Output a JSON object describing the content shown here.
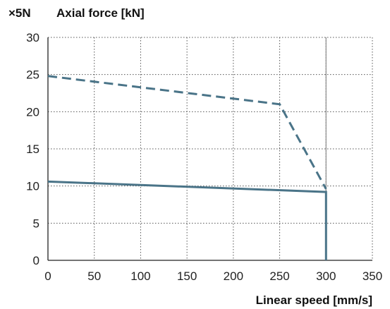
{
  "chart_data": {
    "type": "line",
    "unit_prefix": "×5N",
    "ylabel": "Axial force [kN]",
    "xlabel": "Linear speed [mm/s]",
    "xlim": [
      0,
      350
    ],
    "ylim": [
      0,
      30
    ],
    "x_ticks": [
      0,
      50,
      100,
      150,
      200,
      250,
      300,
      350
    ],
    "y_ticks": [
      0,
      5,
      10,
      15,
      20,
      25,
      30
    ],
    "grid": true,
    "grid_style": "dotted",
    "reference_line_x": 300,
    "series": [
      {
        "style": "dashed",
        "color": "#4a7488",
        "points": [
          [
            0,
            24.8
          ],
          [
            250,
            21.0
          ],
          [
            300,
            9.6
          ]
        ]
      },
      {
        "style": "solid",
        "color": "#4a7488",
        "points": [
          [
            0,
            10.6
          ],
          [
            300,
            9.2
          ],
          [
            300,
            0
          ]
        ]
      }
    ]
  }
}
